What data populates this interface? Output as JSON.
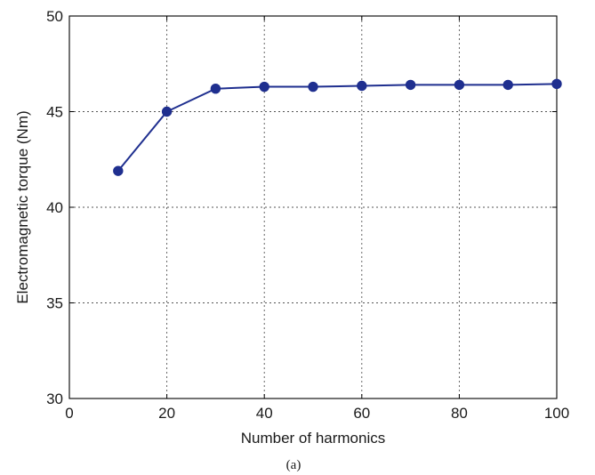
{
  "chart_data": {
    "type": "line",
    "xlabel": "Number of harmonics",
    "ylabel": "Electromagnetic torque (Nm)",
    "caption": "(a)",
    "xlim": [
      0,
      100
    ],
    "ylim": [
      30,
      50
    ],
    "xticks": [
      0,
      20,
      40,
      60,
      80,
      100
    ],
    "yticks": [
      30,
      35,
      40,
      45,
      50
    ],
    "grid": true,
    "series": [
      {
        "x": [
          10,
          20,
          30,
          40,
          50,
          60,
          70,
          80,
          90,
          100
        ],
        "values": [
          41.9,
          45.0,
          46.2,
          46.3,
          46.3,
          46.35,
          46.4,
          46.4,
          46.4,
          46.45
        ]
      }
    ],
    "colors": {
      "line": "#1f2f8f",
      "marker": "#1f2f8f"
    }
  }
}
